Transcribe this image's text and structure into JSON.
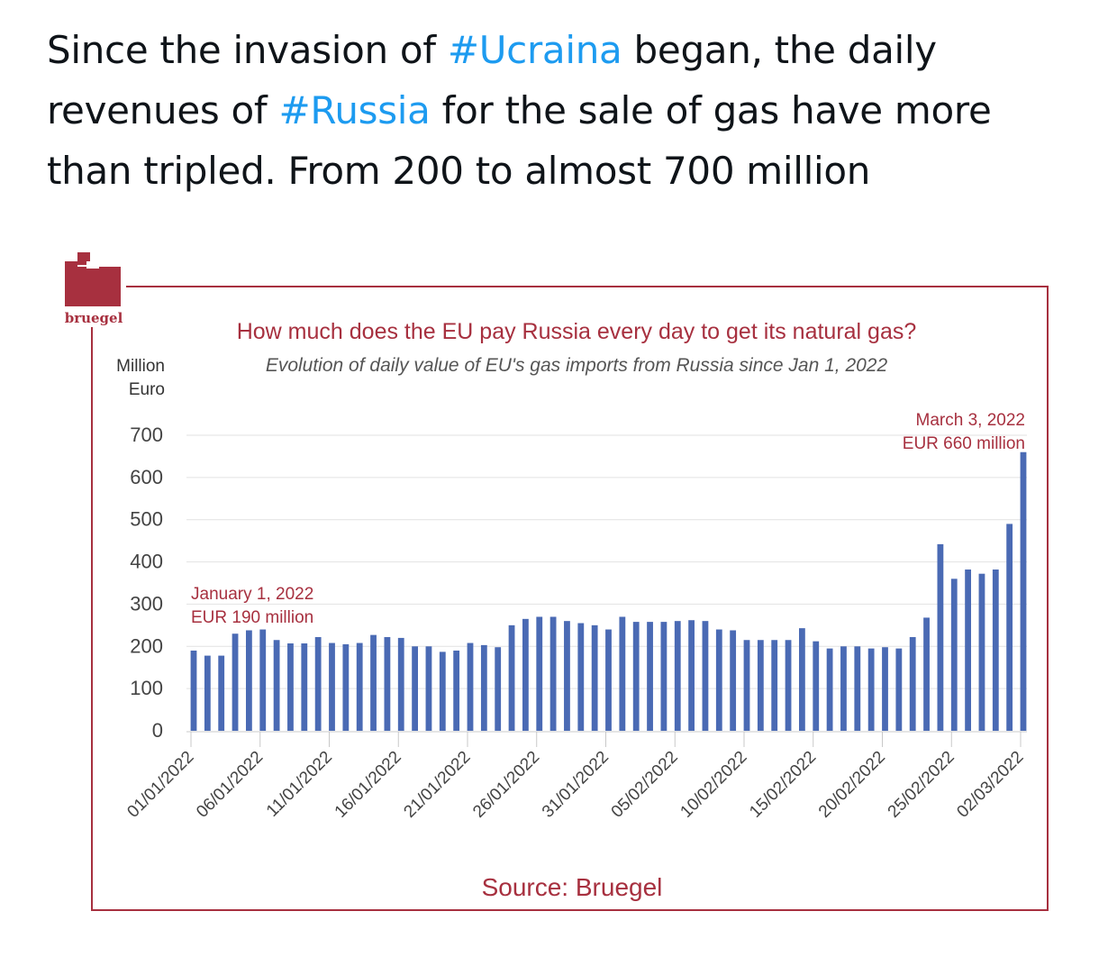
{
  "tweet": {
    "text_1": "Since the invasion of ",
    "hashtag_1": "#Ucraina",
    "text_2": " began, the daily revenues of ",
    "hashtag_2": "#Russia",
    "text_3": " for the sale of gas have more than tripled. From 200 to almost 700 million",
    "hashtag_color": "#1d9bf0"
  },
  "logo": {
    "text": "bruegel",
    "color": "#a7303f"
  },
  "chart_data": {
    "type": "bar",
    "title": "How much does the EU pay Russia every day to get its natural gas?",
    "subtitle": "Evolution of daily value of EU's gas imports from Russia since Jan 1, 2022",
    "ylabel": "Million\nEuro",
    "ylabel_lines": [
      "Million",
      "Euro"
    ],
    "ylim": [
      0,
      700
    ],
    "yticks": [
      0,
      100,
      200,
      300,
      400,
      500,
      600,
      700
    ],
    "x_tick_labels": [
      "01/01/2022",
      "06/01/2022",
      "11/01/2022",
      "16/01/2022",
      "21/01/2022",
      "26/01/2022",
      "31/01/2022",
      "05/02/2022",
      "10/02/2022",
      "15/02/2022",
      "20/02/2022",
      "25/02/2022",
      "02/03/2022"
    ],
    "grid": true,
    "bar_color": "#4a6ab4",
    "frame_color": "#a7303f",
    "annotations": [
      {
        "lines": [
          "January 1, 2022",
          "EUR 190 million"
        ],
        "date": "01/01/2022"
      },
      {
        "lines": [
          "March 3, 2022",
          "EUR 660 million"
        ],
        "date": "03/03/2022"
      }
    ],
    "source": "Source: Bruegel",
    "start_date": "01/01/2022",
    "end_date": "03/03/2022",
    "values": [
      190,
      178,
      178,
      230,
      238,
      240,
      215,
      207,
      207,
      222,
      208,
      205,
      208,
      227,
      222,
      220,
      200,
      200,
      187,
      190,
      208,
      203,
      198,
      250,
      265,
      270,
      270,
      260,
      255,
      250,
      240,
      270,
      258,
      258,
      258,
      260,
      262,
      260,
      240,
      238,
      215,
      215,
      215,
      215,
      243,
      212,
      195,
      200,
      200,
      195,
      198,
      195,
      222,
      268,
      442,
      360,
      382,
      372,
      382,
      490,
      660
    ],
    "title_color": "#a7303f"
  }
}
